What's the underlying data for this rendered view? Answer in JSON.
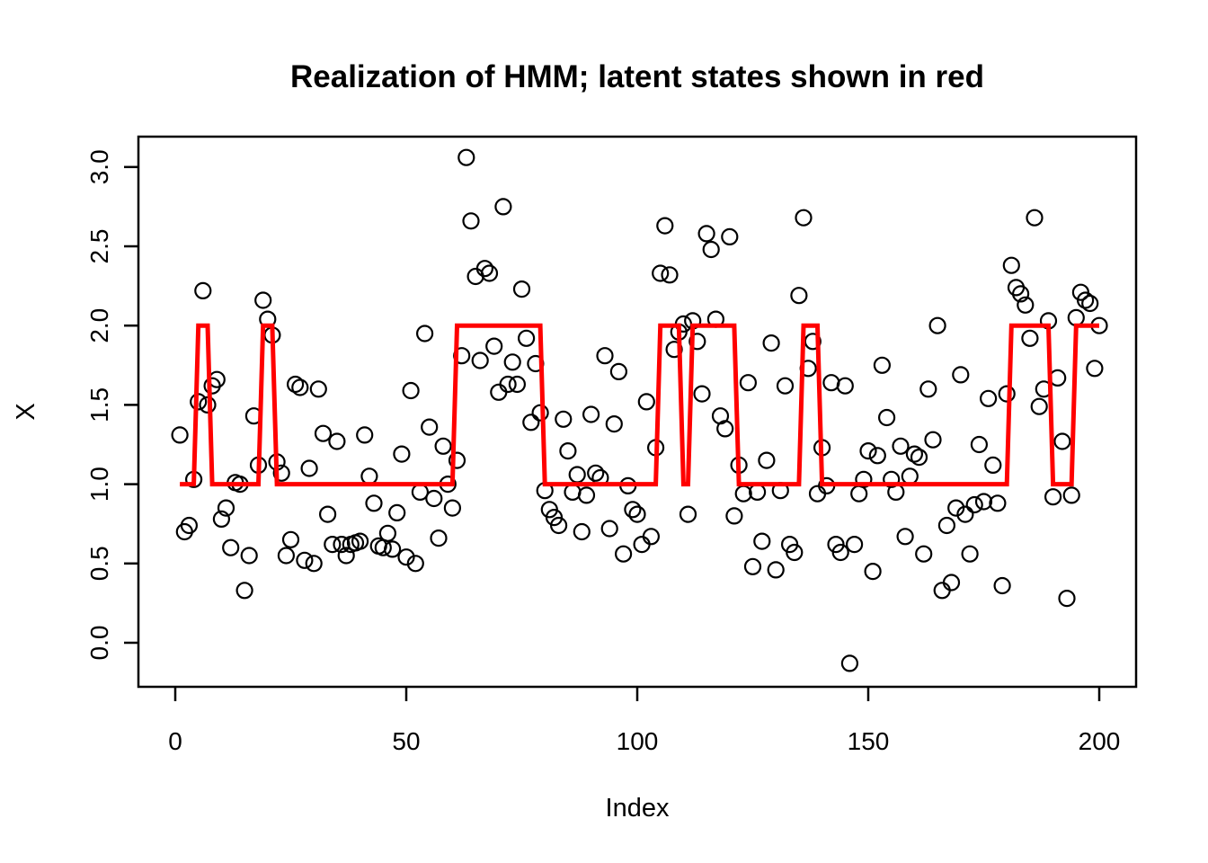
{
  "chart_data": {
    "type": "scatter+step",
    "title": "Realization of HMM; latent states shown in red",
    "xlabel": "Index",
    "ylabel": "X",
    "x_ticks": [
      0,
      50,
      100,
      150,
      200
    ],
    "x_tick_labels": [
      "0",
      "50",
      "100",
      "150",
      "200"
    ],
    "y_ticks": [
      0.0,
      0.5,
      1.0,
      1.5,
      2.0,
      2.5,
      3.0
    ],
    "y_tick_labels": [
      "0.0",
      "0.5",
      "1.0",
      "1.5",
      "2.0",
      "2.5",
      "3.0"
    ],
    "xlim": [
      -8,
      208
    ],
    "ylim": [
      -0.28,
      3.19
    ],
    "grid": false,
    "point_color": "#000000",
    "line_color": "#ff0000",
    "background_color": "#ffffff",
    "points": {
      "x_start": 1,
      "y": [
        1.31,
        0.7,
        0.74,
        1.03,
        1.52,
        2.22,
        1.5,
        1.62,
        1.66,
        0.78,
        0.85,
        0.6,
        1.01,
        1.0,
        0.33,
        0.55,
        1.43,
        1.12,
        2.16,
        2.04,
        1.94,
        1.14,
        1.07,
        0.55,
        0.65,
        1.63,
        1.61,
        0.52,
        1.1,
        0.5,
        1.6,
        1.32,
        0.81,
        0.62,
        1.27,
        0.62,
        0.55,
        0.62,
        0.63,
        0.64,
        1.31,
        1.05,
        0.88,
        0.61,
        0.6,
        0.69,
        0.59,
        0.82,
        1.19,
        0.54,
        1.59,
        0.5,
        0.95,
        1.95,
        1.36,
        0.91,
        0.66,
        1.24,
        1.0,
        0.85,
        1.15,
        1.81,
        3.06,
        2.66,
        2.31,
        1.78,
        2.36,
        2.33,
        1.87,
        1.58,
        2.75,
        1.63,
        1.77,
        1.63,
        2.23,
        1.92,
        1.39,
        1.76,
        1.45,
        0.96,
        0.84,
        0.79,
        0.74,
        1.41,
        1.21,
        0.95,
        1.06,
        0.7,
        0.93,
        1.44,
        1.07,
        1.04,
        1.81,
        0.72,
        1.38,
        1.71,
        0.56,
        0.99,
        0.84,
        0.81,
        0.62,
        1.52,
        0.67,
        1.23,
        2.33,
        2.63,
        2.32,
        1.85,
        1.96,
        2.01,
        0.81,
        2.03,
        1.9,
        1.57,
        2.58,
        2.48,
        2.04,
        1.43,
        1.35,
        2.56,
        0.8,
        1.12,
        0.94,
        1.64,
        0.48,
        0.95,
        0.64,
        1.15,
        1.89,
        0.46,
        0.96,
        1.62,
        0.62,
        0.57,
        2.19,
        2.68,
        1.73,
        1.9,
        0.94,
        1.23,
        0.99,
        1.64,
        0.62,
        0.57,
        1.62,
        -0.13,
        0.62,
        0.94,
        1.03,
        1.21,
        0.45,
        1.18,
        1.75,
        1.42,
        1.03,
        0.95,
        1.24,
        0.67,
        1.05,
        1.19,
        1.17,
        0.56,
        1.6,
        1.28,
        2.0,
        0.33,
        0.74,
        0.38,
        0.85,
        1.69,
        0.81,
        0.56,
        0.87,
        1.25,
        0.89,
        1.54,
        1.12,
        0.88,
        0.36,
        1.57,
        2.38,
        2.24,
        2.2,
        2.13,
        1.92,
        2.68,
        1.49,
        1.6,
        2.03,
        0.92,
        1.67,
        1.27,
        0.28,
        0.93,
        2.05,
        2.21,
        2.16,
        2.14,
        1.73,
        2.0
      ]
    },
    "latent_state_runs": [
      [
        1,
        4,
        1
      ],
      [
        5,
        7,
        2
      ],
      [
        8,
        18,
        1
      ],
      [
        19,
        21,
        2
      ],
      [
        22,
        60,
        1
      ],
      [
        61,
        79,
        2
      ],
      [
        80,
        104,
        1
      ],
      [
        105,
        109,
        2
      ],
      [
        110,
        111,
        1
      ],
      [
        112,
        121,
        2
      ],
      [
        122,
        135,
        1
      ],
      [
        136,
        139,
        2
      ],
      [
        140,
        180,
        1
      ],
      [
        181,
        189,
        2
      ],
      [
        190,
        194,
        1
      ],
      [
        195,
        200,
        2
      ]
    ]
  }
}
